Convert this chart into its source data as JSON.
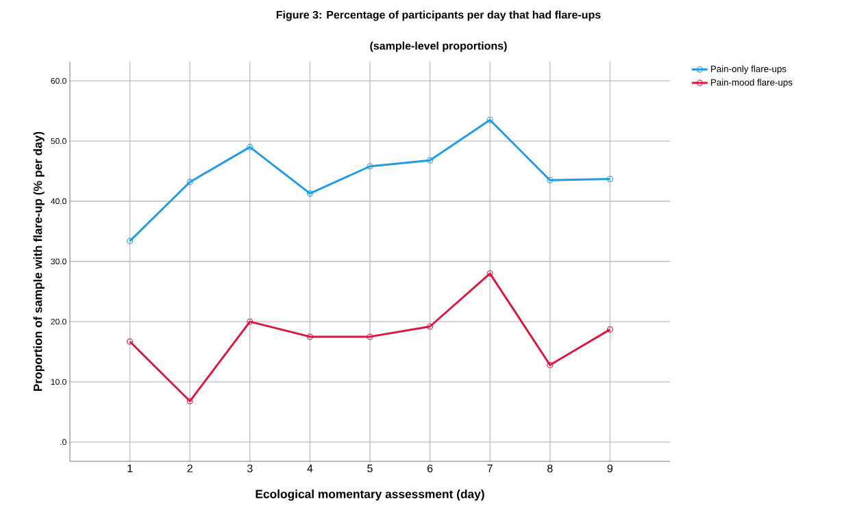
{
  "chart_data": {
    "type": "line",
    "title": "Figure 3: Percentage of participants per day that had flare-ups",
    "subtitle": "(sample-level proportions)",
    "xlabel": "Ecological momentary assessment (day)",
    "ylabel": "Proportion of sample with flare-up (% per day)",
    "x": [
      1,
      2,
      3,
      4,
      5,
      6,
      7,
      8,
      9
    ],
    "series": [
      {
        "name": "Pain-only flare-ups",
        "color": "#1f9be6",
        "values": [
          33.4,
          43.2,
          49.0,
          41.3,
          45.8,
          46.8,
          53.5,
          43.5,
          43.7
        ]
      },
      {
        "name": "Pain-mood flare-ups",
        "color": "#d9163f",
        "values": [
          16.7,
          6.8,
          20.0,
          17.5,
          17.5,
          19.2,
          28.0,
          12.8,
          18.7
        ]
      }
    ],
    "xlim": [
      0,
      10
    ],
    "ylim": [
      -3.2,
      63.2
    ],
    "xticks": [
      1,
      2,
      3,
      4,
      5,
      6,
      7,
      8,
      9
    ],
    "yticks": [
      {
        "value": 0,
        "label": ".0"
      },
      {
        "value": 10,
        "label": "10.0"
      },
      {
        "value": 20,
        "label": "20.0"
      },
      {
        "value": 30,
        "label": "30.0"
      },
      {
        "value": 40,
        "label": "40.0"
      },
      {
        "value": 50,
        "label": "50.0"
      },
      {
        "value": 60,
        "label": "60.0"
      }
    ],
    "grid": true,
    "legend": "top right",
    "marker": "circle",
    "line_style": "solid"
  }
}
